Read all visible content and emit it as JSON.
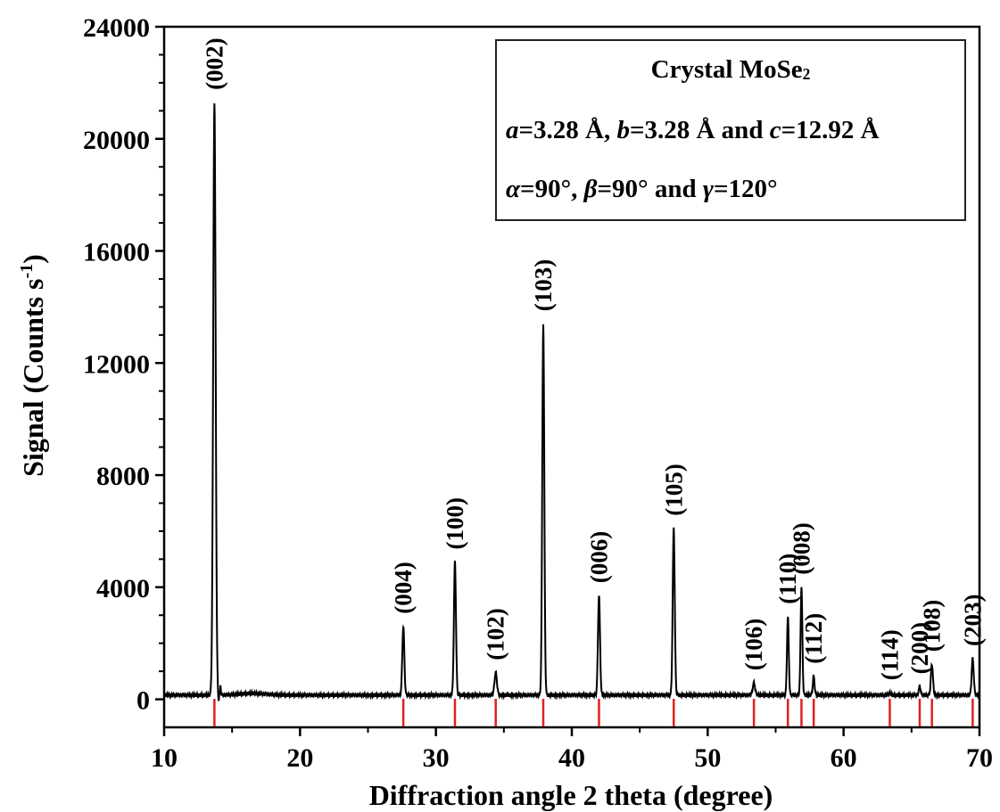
{
  "chart_data": {
    "type": "line",
    "xlabel": "Diffraction angle 2 theta (degree)",
    "ylabel_main": "Signal (Counts s",
    "ylabel_sup": "-1",
    "ylabel_close": ")",
    "xlim": [
      10,
      70
    ],
    "ylim": [
      -1000,
      24000
    ],
    "xticks": [
      "10",
      "20",
      "30",
      "40",
      "50",
      "60",
      "70"
    ],
    "yticks": [
      "0",
      "4000",
      "8000",
      "12000",
      "16000",
      "20000",
      "24000"
    ],
    "baseline": 150,
    "peaks": [
      {
        "label": "(002)",
        "x": 13.7,
        "y": 21300,
        "width": 0.18
      },
      {
        "label": "(004)",
        "x": 27.6,
        "y": 2600,
        "width": 0.15
      },
      {
        "label": "(100)",
        "x": 31.4,
        "y": 4900,
        "width": 0.15
      },
      {
        "label": "(102)",
        "x": 34.4,
        "y": 950,
        "width": 0.18
      },
      {
        "label": "(103)",
        "x": 37.9,
        "y": 13400,
        "width": 0.15
      },
      {
        "label": "(006)",
        "x": 42.0,
        "y": 3700,
        "width": 0.15
      },
      {
        "label": "(105)",
        "x": 47.5,
        "y": 6100,
        "width": 0.15
      },
      {
        "label": "(106)",
        "x": 53.4,
        "y": 580,
        "width": 0.18
      },
      {
        "label": "(110)",
        "x": 55.9,
        "y": 2950,
        "width": 0.13
      },
      {
        "label": "(008)",
        "x": 56.9,
        "y": 4000,
        "width": 0.13
      },
      {
        "label": "(112)",
        "x": 57.8,
        "y": 820,
        "width": 0.13
      },
      {
        "label": "(114)",
        "x": 63.4,
        "y": 230,
        "width": 0.18
      },
      {
        "label": "(200)",
        "x": 65.6,
        "y": 450,
        "width": 0.15
      },
      {
        "label": "(108)",
        "x": 66.5,
        "y": 1250,
        "width": 0.15
      },
      {
        "label": "(203)",
        "x": 69.5,
        "y": 1450,
        "width": 0.15
      }
    ],
    "reference_lines": [
      13.7,
      27.6,
      31.4,
      34.4,
      37.9,
      42.0,
      47.5,
      53.4,
      55.9,
      56.9,
      57.8,
      63.4,
      65.6,
      66.5,
      69.5
    ],
    "colors": {
      "line": "#000000",
      "reference": "#e02020"
    }
  },
  "legend": {
    "title_prefix": "Crystal MoSe",
    "title_sub": "2",
    "a_sym": "a",
    "a_val": "=3.28 Å, ",
    "b_sym": "b",
    "b_val": "=3.28 Å and ",
    "c_sym": "c",
    "c_val": "=12.92 Å",
    "alpha_sym": "α",
    "alpha_val": "=90°, ",
    "beta_sym": "β",
    "beta_val": "=90° and ",
    "gamma_sym": "γ",
    "gamma_val": "=120°"
  }
}
